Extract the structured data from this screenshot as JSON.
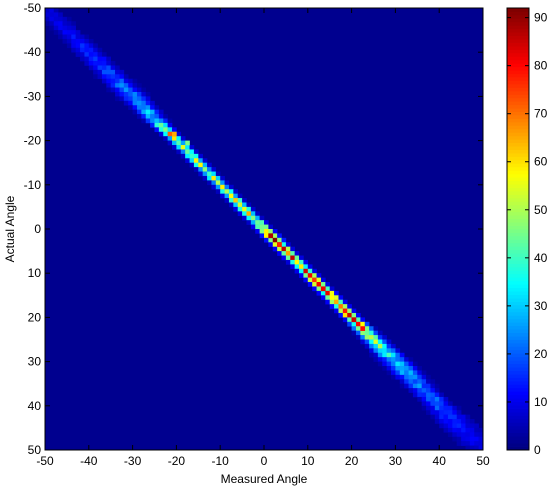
{
  "chart_data": {
    "type": "heatmap",
    "title": "",
    "xlabel": "Measured Angle",
    "ylabel": "Actual Angle",
    "xlim": [
      -50,
      50
    ],
    "ylim": [
      -50,
      50
    ],
    "y_direction": "down",
    "x_ticks": [
      -50,
      -40,
      -30,
      -20,
      -10,
      0,
      10,
      20,
      30,
      40,
      50
    ],
    "y_ticks": [
      -50,
      -40,
      -30,
      -20,
      -10,
      0,
      10,
      20,
      30,
      40,
      50
    ],
    "colormap": "jet",
    "clim": [
      0,
      92
    ],
    "colorbar_ticks": [
      0,
      10,
      20,
      30,
      40,
      50,
      60,
      70,
      80,
      90
    ],
    "grid": false,
    "background_color": "#00008f",
    "bin_size": 1,
    "diagonal_profile": {
      "description_units": "data units",
      "actual_angle": [
        -50,
        -45,
        -40,
        -35,
        -30,
        -25,
        -22,
        -20,
        -15,
        -10,
        -5,
        0,
        2,
        5,
        10,
        15,
        20,
        25,
        30,
        35,
        40,
        45,
        50
      ],
      "peak_count": [
        8,
        10,
        15,
        18,
        22,
        30,
        62,
        45,
        50,
        48,
        55,
        60,
        88,
        70,
        72,
        75,
        80,
        45,
        30,
        22,
        20,
        12,
        8
      ],
      "spread": [
        2,
        2,
        2,
        2,
        2,
        1.5,
        1,
        1,
        1,
        1,
        1,
        1,
        1,
        1,
        1,
        1,
        1,
        1.5,
        2,
        2,
        2,
        3,
        3
      ]
    },
    "hot_spots": [
      {
        "measured": -21,
        "actual": -22,
        "value": 65
      },
      {
        "measured": -18,
        "actual": -20,
        "value": 45
      },
      {
        "measured": 1,
        "actual": 1,
        "value": 88
      },
      {
        "measured": 3,
        "actual": 3,
        "value": 78
      },
      {
        "measured": 13,
        "actual": 13,
        "value": 82
      },
      {
        "measured": 20,
        "actual": 20,
        "value": 85
      },
      {
        "measured": 22,
        "actual": 22,
        "value": 80
      }
    ]
  }
}
